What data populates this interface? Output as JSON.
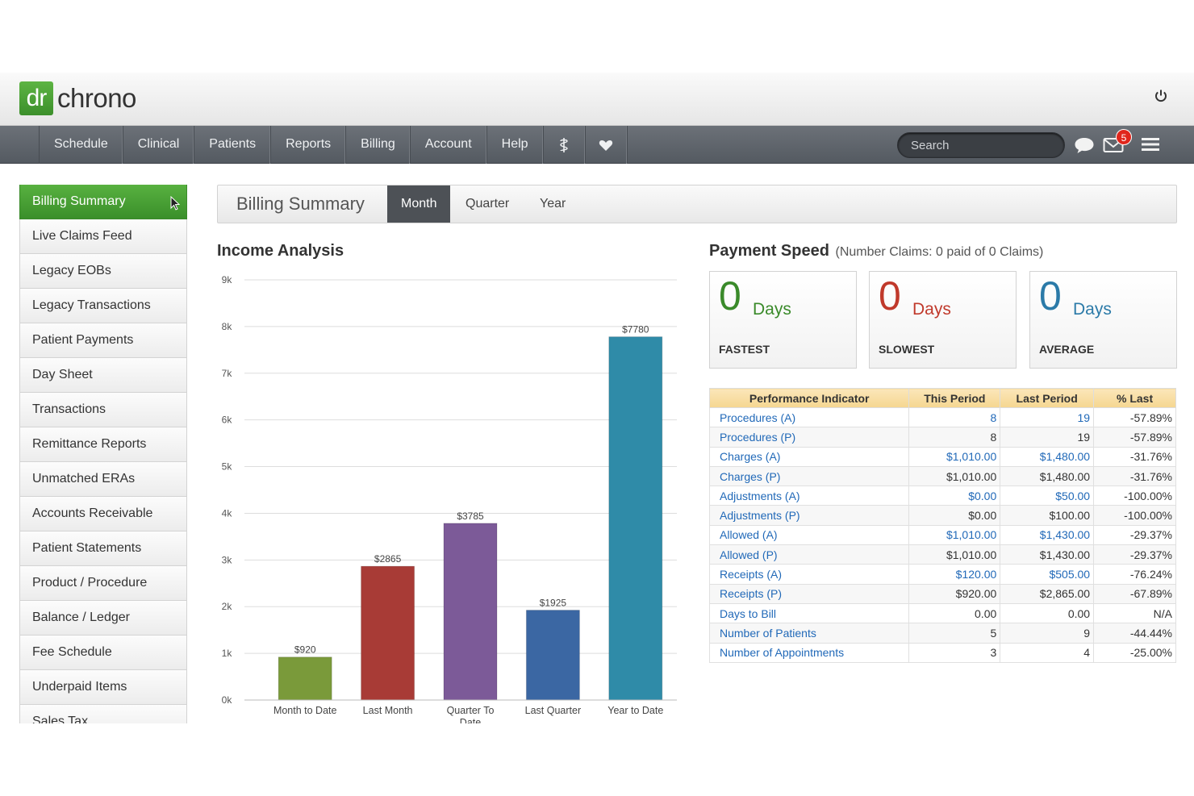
{
  "brand": {
    "logo_mark": "dr",
    "logo_text": "chrono"
  },
  "nav": {
    "items": [
      "Schedule",
      "Clinical",
      "Patients",
      "Reports",
      "Billing",
      "Account",
      "Help"
    ],
    "icons": [
      "caduceus-icon",
      "heart-icon"
    ],
    "search_placeholder": "Search",
    "mail_count": "5"
  },
  "sidebar": {
    "items": [
      "Billing Summary",
      "Live Claims Feed",
      "Legacy EOBs",
      "Legacy Transactions",
      "Patient Payments",
      "Day Sheet",
      "Transactions",
      "Remittance Reports",
      "Unmatched ERAs",
      "Accounts Receivable",
      "Patient Statements",
      "Product / Procedure",
      "Balance / Ledger",
      "Fee Schedule",
      "Underpaid Items",
      "Sales Tax"
    ],
    "active": "Billing Summary"
  },
  "tabs": {
    "title": "Billing Summary",
    "items": [
      "Month",
      "Quarter",
      "Year"
    ],
    "active": "Month"
  },
  "income": {
    "title": "Income Analysis"
  },
  "chart_data": {
    "type": "bar",
    "title": "Income Analysis",
    "categories": [
      "Month to Date",
      "Last Month",
      "Quarter To Date",
      "Last Quarter",
      "Year to Date"
    ],
    "values": [
      920,
      2865,
      3785,
      1925,
      7780
    ],
    "value_labels": [
      "$920",
      "$2865",
      "$3785",
      "$1925",
      "$7780"
    ],
    "colors": [
      "#7a9a3a",
      "#a83b36",
      "#7c5a98",
      "#3b67a3",
      "#2f8ba8"
    ],
    "ylim": [
      0,
      9000
    ],
    "yticks": [
      "0k",
      "1k",
      "2k",
      "3k",
      "4k",
      "5k",
      "6k",
      "7k",
      "8k",
      "9k"
    ],
    "grid": true,
    "legend": "none"
  },
  "payment_speed": {
    "title": "Payment Speed",
    "subtitle": "(Number Claims: 0 paid of 0 Claims)",
    "cards": [
      {
        "value": "0",
        "unit": "Days",
        "label": "FASTEST"
      },
      {
        "value": "0",
        "unit": "Days",
        "label": "SLOWEST"
      },
      {
        "value": "0",
        "unit": "Days",
        "label": "AVERAGE"
      }
    ]
  },
  "performance": {
    "headers": [
      "Performance Indicator",
      "This Period",
      "Last Period",
      "% Last"
    ],
    "rows": [
      [
        "Procedures (A)",
        "8",
        "19",
        "-57.89%"
      ],
      [
        "Procedures (P)",
        "8",
        "19",
        "-57.89%"
      ],
      [
        "Charges (A)",
        "$1,010.00",
        "$1,480.00",
        "-31.76%"
      ],
      [
        "Charges (P)",
        "$1,010.00",
        "$1,480.00",
        "-31.76%"
      ],
      [
        "Adjustments (A)",
        "$0.00",
        "$50.00",
        "-100.00%"
      ],
      [
        "Adjustments (P)",
        "$0.00",
        "$100.00",
        "-100.00%"
      ],
      [
        "Allowed (A)",
        "$1,010.00",
        "$1,430.00",
        "-29.37%"
      ],
      [
        "Allowed (P)",
        "$1,010.00",
        "$1,430.00",
        "-29.37%"
      ],
      [
        "Receipts (A)",
        "$120.00",
        "$505.00",
        "-76.24%"
      ],
      [
        "Receipts (P)",
        "$920.00",
        "$2,865.00",
        "-67.89%"
      ],
      [
        "Days to Bill",
        "0.00",
        "0.00",
        "N/A"
      ],
      [
        "Number of Patients",
        "5",
        "9",
        "-44.44%"
      ],
      [
        "Number of Appointments",
        "3",
        "4",
        "-25.00%"
      ]
    ],
    "linked_rows": [
      "Procedures (A)",
      "Charges (A)",
      "Adjustments (A)",
      "Allowed (A)",
      "Receipts (A)"
    ]
  }
}
